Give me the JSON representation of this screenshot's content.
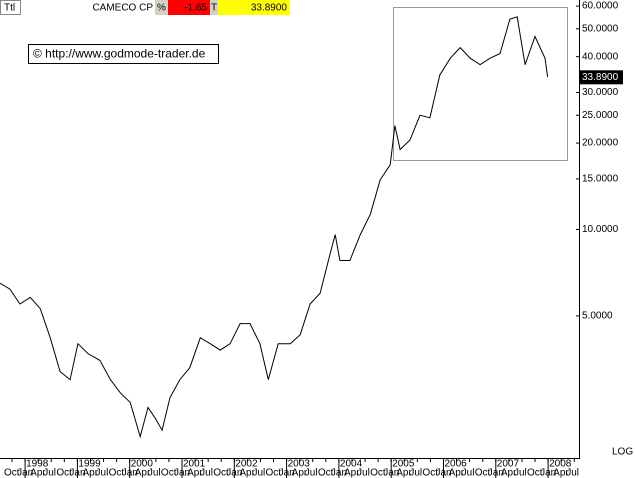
{
  "chart_data": {
    "type": "line",
    "header": {
      "label": "Ttl",
      "percent_label": "%",
      "change": -1.65,
      "type_label": "T"
    },
    "annotation": "© http://www.godmode-trader.de",
    "scale_label": "LOG",
    "log_scale": true,
    "last_value": {
      "value": 33.89,
      "label": "33.8900"
    },
    "x": [
      1997.52,
      1997.71,
      1997.9,
      1998.1,
      1998.29,
      1998.48,
      1998.67,
      1998.86,
      1999.01,
      1999.2,
      1999.43,
      1999.63,
      1999.82,
      2000.01,
      2000.2,
      2000.35,
      2000.49,
      2000.62,
      2000.77,
      2000.96,
      2001.15,
      2001.35,
      2001.54,
      2001.73,
      2001.92,
      2002.11,
      2002.3,
      2002.49,
      2002.65,
      2002.84,
      2003.07,
      2003.26,
      2003.45,
      2003.64,
      2003.83,
      2003.93,
      2004.02,
      2004.21,
      2004.41,
      2004.6,
      2004.79,
      2004.98,
      2005.07,
      2005.17,
      2005.36,
      2005.55,
      2005.74,
      2005.93,
      2006.13,
      2006.32,
      2006.51,
      2006.7,
      2006.89,
      2007.08,
      2007.27,
      2007.41,
      2007.56,
      2007.75,
      2007.94,
      2007.99
    ],
    "series": [
      {
        "name": "CAMECO CP",
        "color": "#000000",
        "values": [
          6.5,
          6.2,
          5.5,
          5.8,
          5.3,
          4.2,
          3.2,
          3.0,
          4.0,
          3.7,
          3.5,
          3.0,
          2.7,
          2.5,
          1.9,
          2.4,
          2.2,
          2.0,
          2.6,
          3.0,
          3.3,
          4.2,
          4.0,
          3.8,
          4.0,
          4.7,
          4.7,
          4.0,
          3.0,
          4.0,
          4.0,
          4.3,
          5.5,
          6.0,
          8.2,
          9.6,
          7.8,
          7.8,
          9.6,
          11.3,
          14.9,
          16.8,
          23,
          19,
          20.5,
          25,
          24.5,
          34.5,
          39.5,
          43,
          39.5,
          37.5,
          39.5,
          41,
          54,
          55,
          37.5,
          47,
          39.5,
          34
        ]
      }
    ],
    "xlim": [
      1997.52,
      2008.61
    ],
    "ylim": [
      1.6,
      63
    ],
    "xticks": [
      1998,
      1999,
      2000,
      2001,
      2002,
      2003,
      2004,
      2005,
      2006,
      2007,
      2008
    ],
    "month_ticks": [
      {
        "value": 1997.75,
        "label": "Oct"
      },
      {
        "value": 1998,
        "label": "Jan"
      },
      {
        "value": 1998.25,
        "label": "Apr"
      },
      {
        "value": 1998.5,
        "label": "Jul"
      },
      {
        "value": 1998.75,
        "label": "Oct"
      },
      {
        "value": 1999,
        "label": "Jan"
      },
      {
        "value": 1999.25,
        "label": "Apr"
      },
      {
        "value": 1999.5,
        "label": "Jul"
      },
      {
        "value": 1999.75,
        "label": "Oct"
      },
      {
        "value": 2000,
        "label": "Jan"
      },
      {
        "value": 2000.25,
        "label": "Apr"
      },
      {
        "value": 2000.5,
        "label": "Jul"
      },
      {
        "value": 2000.75,
        "label": "Oct"
      },
      {
        "value": 2001,
        "label": "Jan"
      },
      {
        "value": 2001.25,
        "label": "Apr"
      },
      {
        "value": 2001.5,
        "label": "Jul"
      },
      {
        "value": 2001.75,
        "label": "Oct"
      },
      {
        "value": 2002,
        "label": "Jan"
      },
      {
        "value": 2002.25,
        "label": "Apr"
      },
      {
        "value": 2002.5,
        "label": "Jul"
      },
      {
        "value": 2002.75,
        "label": "Oct"
      },
      {
        "value": 2003,
        "label": "Jan"
      },
      {
        "value": 2003.25,
        "label": "Apr"
      },
      {
        "value": 2003.5,
        "label": "Jul"
      },
      {
        "value": 2003.75,
        "label": "Oct"
      },
      {
        "value": 2004,
        "label": "Jan"
      },
      {
        "value": 2004.25,
        "label": "Apr"
      },
      {
        "value": 2004.5,
        "label": "Jul"
      },
      {
        "value": 2004.75,
        "label": "Oct"
      },
      {
        "value": 2005,
        "label": "Jan"
      },
      {
        "value": 2005.25,
        "label": "Apr"
      },
      {
        "value": 2005.5,
        "label": "Jul"
      },
      {
        "value": 2005.75,
        "label": "Oct"
      },
      {
        "value": 2006,
        "label": "Jan"
      },
      {
        "value": 2006.25,
        "label": "Apr"
      },
      {
        "value": 2006.5,
        "label": "Jul"
      },
      {
        "value": 2006.75,
        "label": "Oct"
      },
      {
        "value": 2007,
        "label": "Jan"
      },
      {
        "value": 2007.25,
        "label": "Apr"
      },
      {
        "value": 2007.5,
        "label": "Jul"
      },
      {
        "value": 2007.75,
        "label": "Oct"
      },
      {
        "value": 2008,
        "label": "Jan"
      },
      {
        "value": 2008.25,
        "label": "Apr"
      },
      {
        "value": 2008.5,
        "label": "Jul"
      }
    ],
    "yticks": [
      {
        "value": 60,
        "label": "60.0000"
      },
      {
        "value": 50,
        "label": "50.0000"
      },
      {
        "value": 40,
        "label": "40.0000"
      },
      {
        "value": 30,
        "label": "30.0000"
      },
      {
        "value": 25,
        "label": "25.0000"
      },
      {
        "value": 20,
        "label": "20.0000"
      },
      {
        "value": 15,
        "label": "15.0000"
      },
      {
        "value": 10,
        "label": "10.0000"
      },
      {
        "value": 5,
        "label": "5.0000"
      }
    ],
    "header_colors": {
      "change": "#ff0000",
      "last": "#ffff00"
    }
  }
}
